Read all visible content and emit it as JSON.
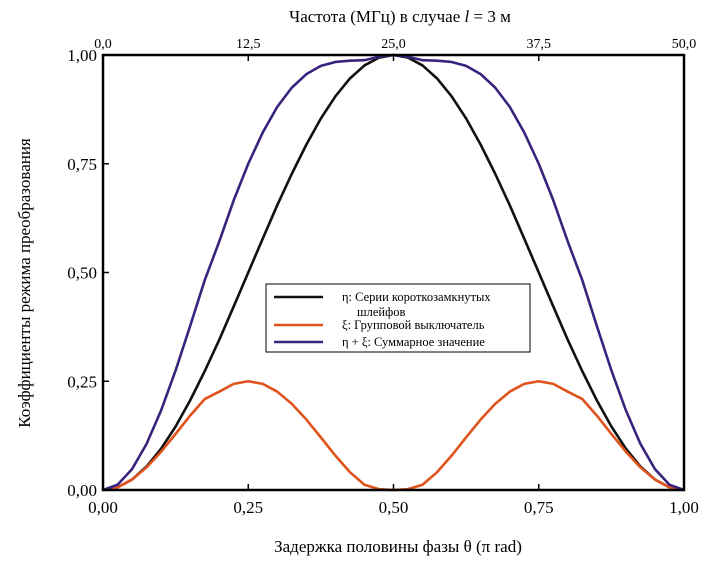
{
  "chart_data": {
    "type": "line",
    "top_axis_label": "Частота (МГц) в случае l = 3 м",
    "top_axis_label_parts": {
      "before": "Частота (МГц) в случае ",
      "var": "l",
      "after": " = 3 м"
    },
    "xlabel": "Задержка половины фазы θ (π rad)",
    "ylabel": "Коэффициенты режима преобразования",
    "xlim": [
      0,
      1
    ],
    "ylim": [
      0,
      1
    ],
    "x_ticks": [
      0,
      0.25,
      0.5,
      0.75,
      1
    ],
    "x_tick_labels": [
      "0,00",
      "0,25",
      "0,50",
      "0,75",
      "1,00"
    ],
    "y_ticks": [
      0,
      0.25,
      0.5,
      0.75,
      1
    ],
    "y_tick_labels": [
      "0,00",
      "0,25",
      "0,50",
      "0,75",
      "1,00"
    ],
    "top_ticks": [
      0,
      12.5,
      25,
      37.5,
      50
    ],
    "top_tick_labels": [
      "0,0",
      "12,5",
      "25,0",
      "37,5",
      "50,0"
    ],
    "top_xlim": [
      0,
      50
    ],
    "grid": false,
    "legend_position": "center",
    "x": [
      0,
      0.025,
      0.05,
      0.075,
      0.1,
      0.125,
      0.15,
      0.175,
      0.2,
      0.225,
      0.25,
      0.275,
      0.3,
      0.325,
      0.35,
      0.375,
      0.4,
      0.425,
      0.45,
      0.475,
      0.5,
      0.525,
      0.55,
      0.575,
      0.6,
      0.625,
      0.65,
      0.675,
      0.7,
      0.725,
      0.75,
      0.775,
      0.8,
      0.825,
      0.85,
      0.875,
      0.9,
      0.925,
      0.95,
      0.975,
      1
    ],
    "series": [
      {
        "name": "η: Серии короткозамкнутых шлейфов",
        "legend_lines": [
          "η: Серии короткозамкнутых",
          "шлейфов"
        ],
        "color": "#111111",
        "values": [
          0,
          0.006,
          0.024,
          0.054,
          0.095,
          0.146,
          0.206,
          0.273,
          0.345,
          0.422,
          0.5,
          0.578,
          0.655,
          0.727,
          0.794,
          0.854,
          0.905,
          0.946,
          0.976,
          0.994,
          1,
          0.994,
          0.976,
          0.946,
          0.905,
          0.854,
          0.794,
          0.727,
          0.655,
          0.578,
          0.5,
          0.422,
          0.345,
          0.273,
          0.206,
          0.146,
          0.095,
          0.054,
          0.024,
          0.006,
          0
        ]
      },
      {
        "name": "ξ: Групповой выключатель",
        "legend_lines": [
          "ξ: Групповой выключатель"
        ],
        "color": "#e0531c",
        "values": [
          0,
          0.006,
          0.024,
          0.052,
          0.088,
          0.129,
          0.171,
          0.209,
          0.226,
          0.244,
          0.25,
          0.244,
          0.226,
          0.198,
          0.162,
          0.121,
          0.079,
          0.041,
          0.012,
          0.002,
          0,
          0.002,
          0.012,
          0.041,
          0.079,
          0.121,
          0.162,
          0.198,
          0.226,
          0.244,
          0.25,
          0.244,
          0.226,
          0.209,
          0.171,
          0.129,
          0.088,
          0.052,
          0.024,
          0.006,
          0
        ]
      },
      {
        "name": "η + ξ: Суммарное значение",
        "legend_lines": [
          "η + ξ:  Суммарное значение"
        ],
        "color": "#3a237d",
        "values": [
          0,
          0.012,
          0.048,
          0.106,
          0.183,
          0.275,
          0.377,
          0.482,
          0.571,
          0.666,
          0.75,
          0.822,
          0.881,
          0.925,
          0.956,
          0.975,
          0.984,
          0.987,
          0.988,
          0.996,
          1,
          0.996,
          0.988,
          0.987,
          0.984,
          0.975,
          0.956,
          0.925,
          0.881,
          0.822,
          0.75,
          0.666,
          0.571,
          0.482,
          0.377,
          0.275,
          0.183,
          0.106,
          0.048,
          0.012,
          0
        ]
      }
    ]
  }
}
